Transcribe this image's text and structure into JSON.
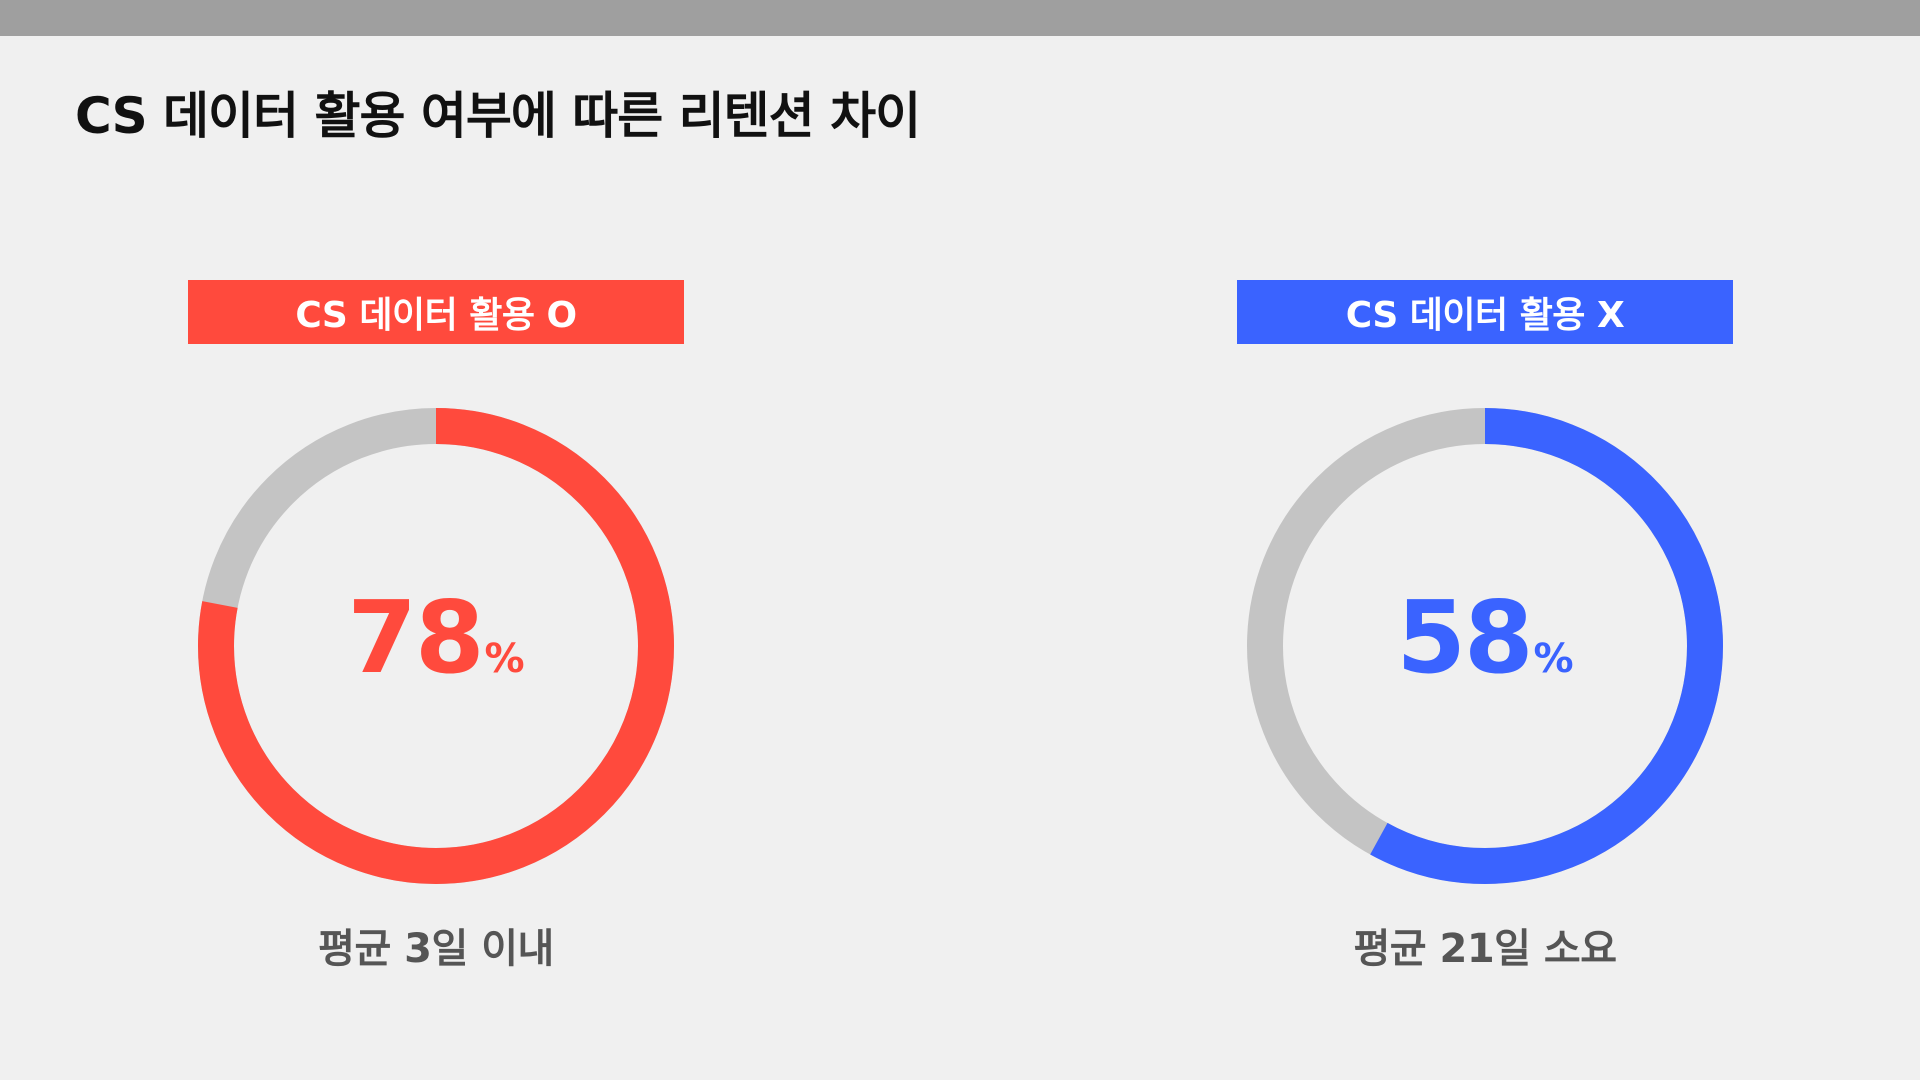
{
  "title": "CS 데이터 활용 여부에 따른 리텐션 차이",
  "colors": {
    "left_accent": "#ff4a3d",
    "right_accent": "#3a63ff",
    "track": "#c4c4c4",
    "background": "#f0f0f0",
    "top_bar": "#9f9f9f"
  },
  "chart_data": [
    {
      "type": "pie",
      "style": "donut",
      "label": "CS 데이터 활용 O",
      "value": 78,
      "value_text": "78",
      "unit": "%",
      "caption": "평균 3일 이내",
      "color": "#ff4a3d",
      "remainder_color": "#c4c4c4"
    },
    {
      "type": "pie",
      "style": "donut",
      "label": "CS 데이터 활용 X",
      "value": 58,
      "value_text": "58",
      "unit": "%",
      "caption": "평균 21일 소요",
      "color": "#3a63ff",
      "remainder_color": "#c4c4c4"
    }
  ]
}
